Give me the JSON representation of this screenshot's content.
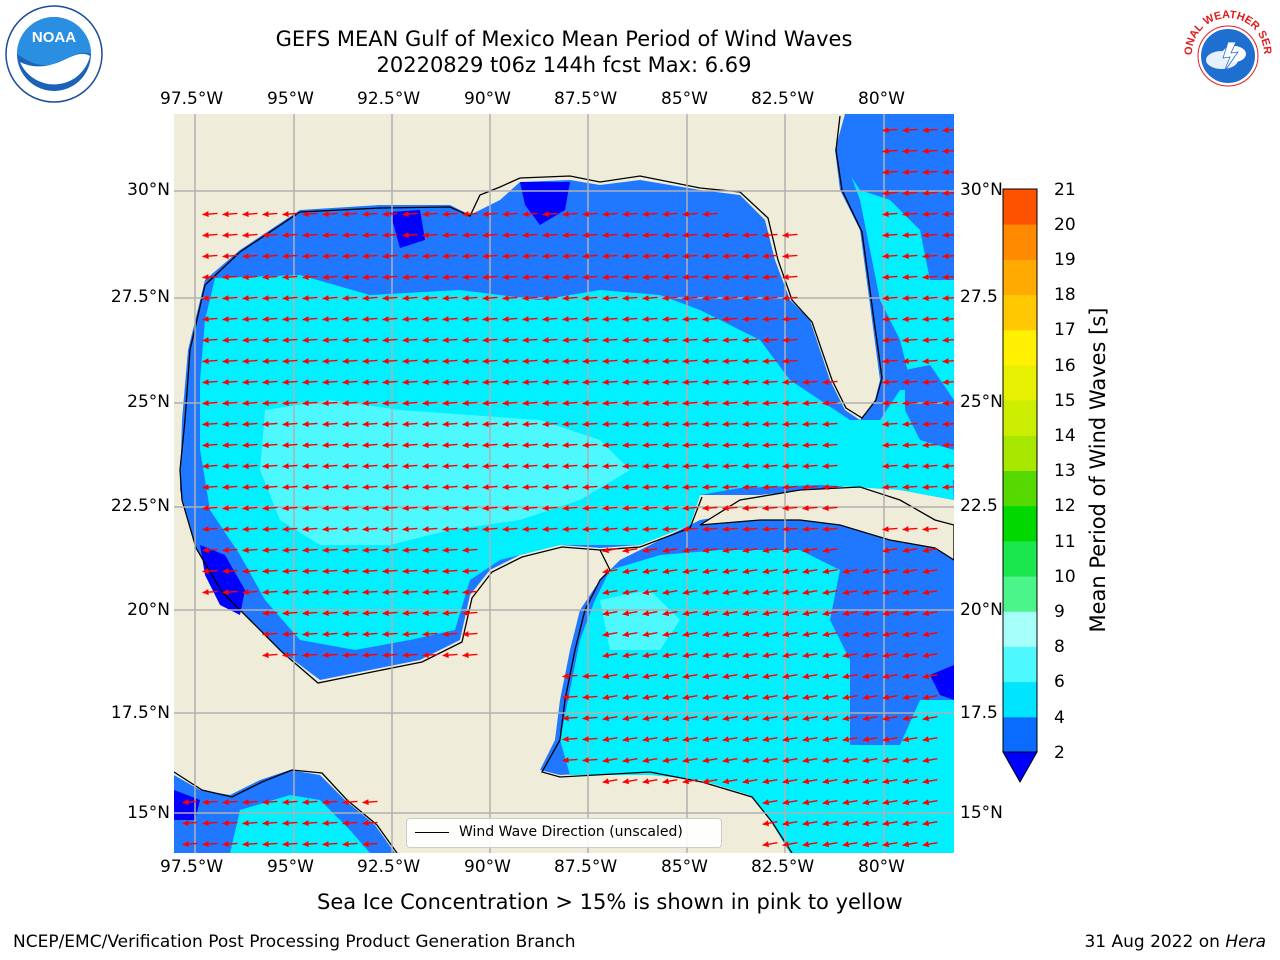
{
  "header": {
    "title": "GEFS MEAN Gulf of Mexico Mean Period of Wind Waves",
    "subtitle": "20220829 t06z 144h fcst   Max: 6.69"
  },
  "axes": {
    "lon_ticks_top": [
      "97.5°W",
      "95°W",
      "92.5°W",
      "90°W",
      "87.5°W",
      "85°W",
      "82.5°W",
      "80°W"
    ],
    "lon_ticks_bottom": [
      "97.5°W",
      "95°W",
      "92.5°W",
      "90°W",
      "87.5°W",
      "85°W",
      "82.5°W",
      "80°W"
    ],
    "lat_ticks_left": [
      "30°N",
      "27.5°N",
      "25°N",
      "22.5°N",
      "20°N",
      "17.5°N",
      "15°N"
    ],
    "lat_ticks_right": [
      "30°N",
      "27.5",
      "25°N",
      "22.5",
      "20°N",
      "17.5",
      "15°N"
    ]
  },
  "colorbar": {
    "label": "Mean Period of Wind Waves [s]",
    "tick_labels": [
      "2",
      "4",
      "6",
      "8",
      "9",
      "10",
      "11",
      "12",
      "13",
      "14",
      "15",
      "16",
      "17",
      "18",
      "19",
      "20",
      "21"
    ],
    "levels": [
      2,
      4,
      6,
      8,
      9,
      10,
      11,
      12,
      13,
      14,
      15,
      16,
      17,
      18,
      19,
      20,
      21
    ],
    "colors": [
      "#0a6cff",
      "#00e5ff",
      "#4df8ff",
      "#a6fff8",
      "#4cf58a",
      "#1ae64e",
      "#00d800",
      "#55d900",
      "#a8e800",
      "#ccee00",
      "#e6f000",
      "#fff100",
      "#ffc800",
      "#ffaa00",
      "#ff8a00",
      "#ff5200",
      "#ff1a00",
      "#ff0000"
    ],
    "under_color": "#0000ff"
  },
  "legend": {
    "label": "Wind Wave Direction (unscaled)"
  },
  "footer": {
    "note": "Sea Ice Concentration > 15% is shown in pink to yellow",
    "credit": "NCEP/EMC/Verification Post Processing Product Generation Branch",
    "date": "31 Aug 2022 on ",
    "machine": "Hera"
  },
  "colors": {
    "land": "#efedd9",
    "wave_deep_blue": "#0000ff",
    "wave_blue": "#1f78ff",
    "wave_cyan": "#00f0ff",
    "wave_light_cyan": "#4df8ff",
    "arrow": "#ff0000",
    "grid": "#b0b0b0"
  },
  "logos": {
    "left": {
      "name": "noaa-logo",
      "text": "NOAA"
    },
    "right": {
      "name": "nws-logo",
      "text": "NATIONAL WEATHER SERVICE"
    }
  }
}
